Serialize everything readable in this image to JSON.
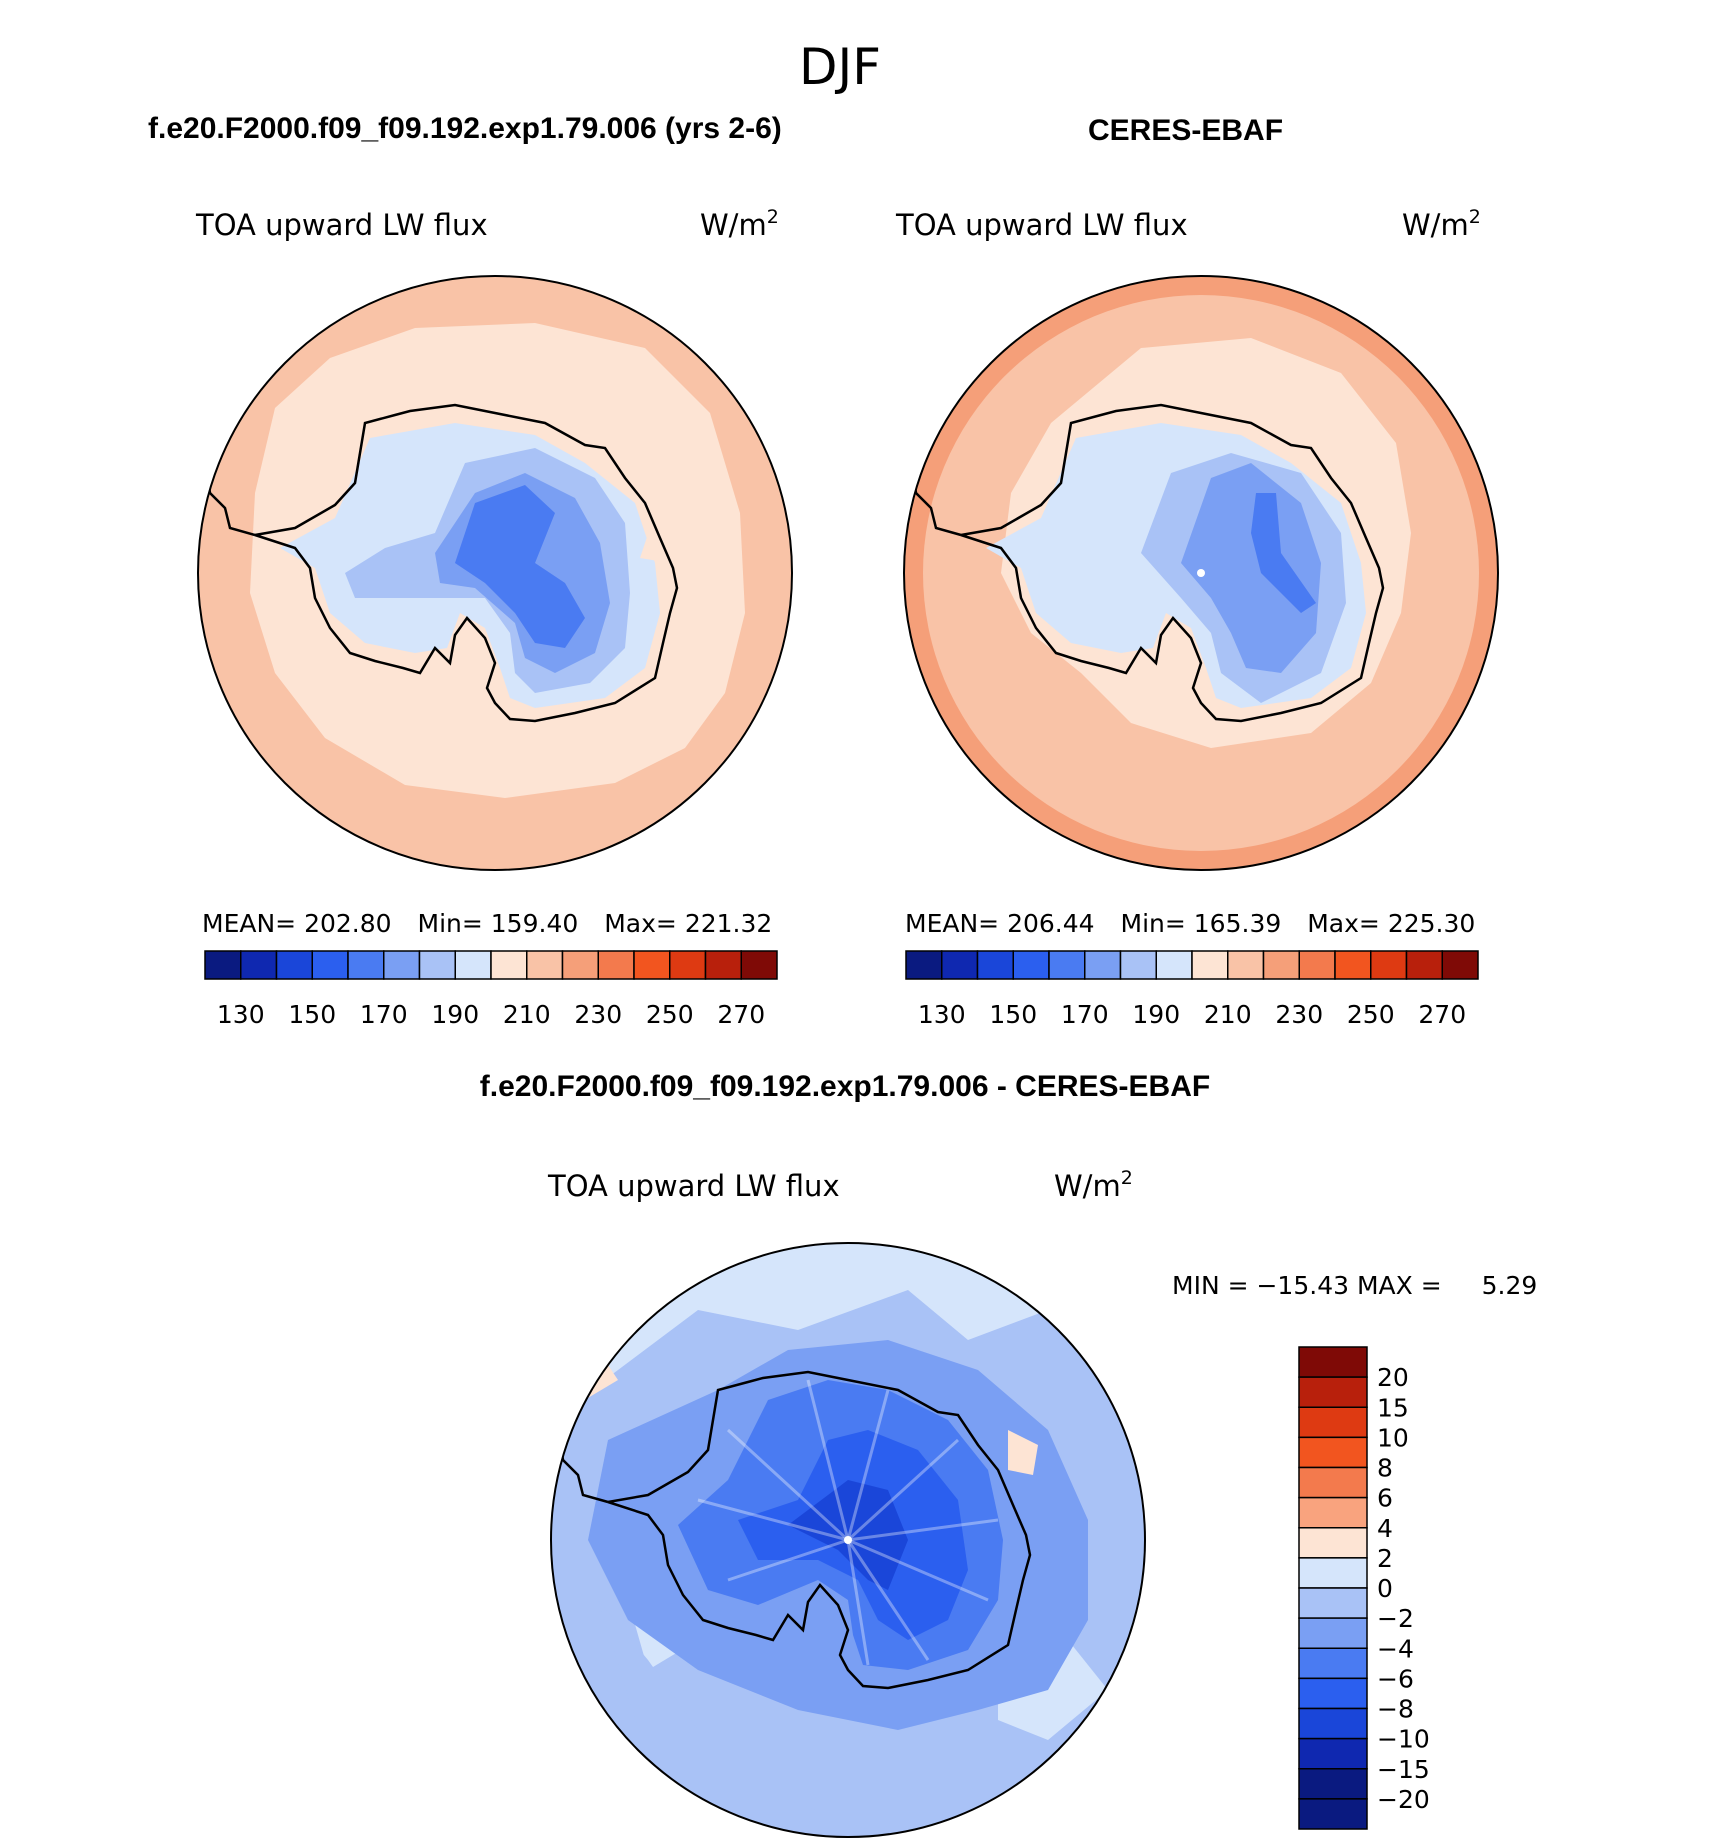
{
  "figure": {
    "season": "DJF",
    "panel_left_title": "f.e20.F2000.f09_f09.192.exp1.79.006 (yrs 2-6)",
    "panel_right_title": "CERES-EBAF",
    "diff_title": "f.e20.F2000.f09_f09.192.exp1.79.006 - CERES-EBAF"
  },
  "colors": {
    "abs_scale": [
      "#0a1a80",
      "#0f28b0",
      "#1a46d9",
      "#2b5fef",
      "#4a7bf2",
      "#7a9ff3",
      "#a9c2f6",
      "#d5e5fb",
      "#fde4d4",
      "#f9c3a7",
      "#f59f79",
      "#f37a4d",
      "#f2551f",
      "#de3a12",
      "#b8200c",
      "#7f0a06"
    ],
    "diff_scale": [
      "#0a1a80",
      "#0f28b0",
      "#1a46d9",
      "#2b5fef",
      "#4a7bf2",
      "#7a9ff3",
      "#a9c2f6",
      "#d5e5fb",
      "#fde4d4",
      "#f9a37e",
      "#f37a4d",
      "#f2551f",
      "#de3a12",
      "#b8200c",
      "#7f0a06"
    ]
  },
  "map_data": {
    "projection": "south-polar stereographic",
    "variable": "TOA upward LW flux",
    "units": "W/m",
    "units_superscript": "2",
    "panels": [
      {
        "id": "model",
        "stats": {
          "mean_label": "MEAN=",
          "mean": "202.80",
          "min_label": "Min=",
          "min": "159.40",
          "max_label": "Max=",
          "max": "221.32"
        }
      },
      {
        "id": "obs",
        "stats": {
          "mean_label": "MEAN=",
          "mean": "206.44",
          "min_label": "Min=",
          "min": "165.39",
          "max_label": "Max=",
          "max": "225.30"
        }
      },
      {
        "id": "diff",
        "stats_text": "MIN = −15.43 MAX =",
        "stats_max": "5.29"
      }
    ],
    "abs_colorbar_ticks": [
      "130",
      "150",
      "170",
      "190",
      "210",
      "230",
      "250",
      "270"
    ],
    "diff_colorbar_ticks": [
      "20",
      "15",
      "10",
      "8",
      "6",
      "4",
      "2",
      "0",
      "−2",
      "−4",
      "−6",
      "−8",
      "−10",
      "−15",
      "−20"
    ]
  }
}
